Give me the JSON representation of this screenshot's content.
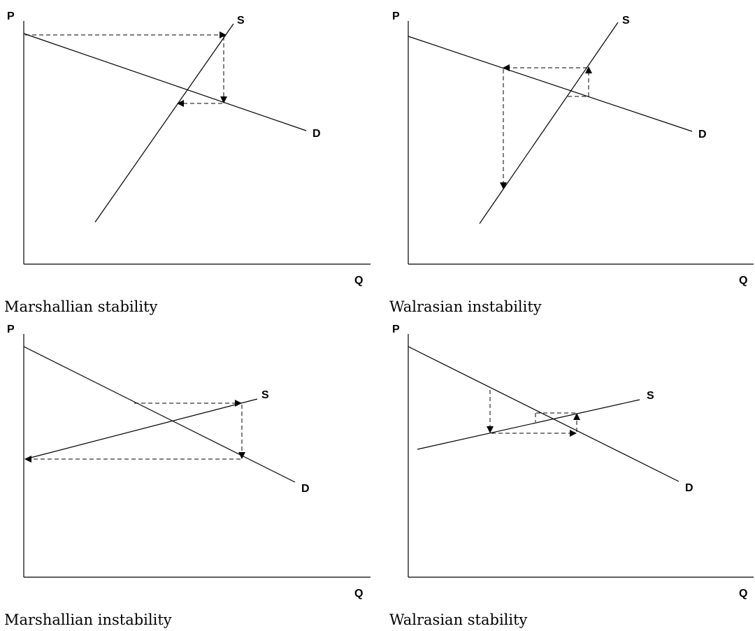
{
  "panels": [
    {
      "caption": "Marshallian stability",
      "axis_p_label": "P",
      "axis_q_label": "Q",
      "supply_label": "S",
      "demand_label": "D"
    },
    {
      "caption": "Walrasian instability",
      "axis_p_label": "P",
      "axis_q_label": "Q",
      "supply_label": "S",
      "demand_label": "D"
    },
    {
      "caption": "Marshallian instability",
      "axis_p_label": "P",
      "axis_q_label": "Q",
      "supply_label": "S",
      "demand_label": "D"
    },
    {
      "caption": "Walrasian stability",
      "axis_p_label": "P",
      "axis_q_label": "Q",
      "supply_label": "S",
      "demand_label": "D"
    }
  ]
}
